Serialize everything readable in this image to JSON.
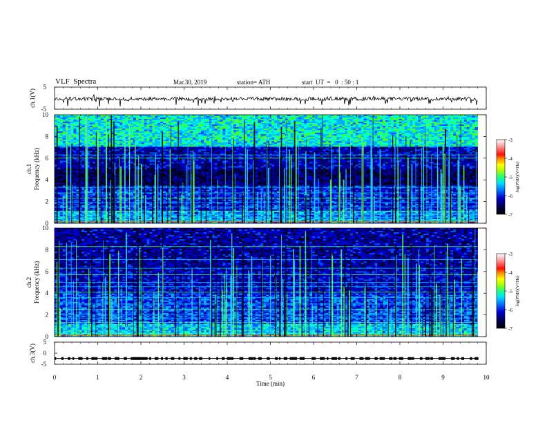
{
  "header": {
    "title": "VLF  Spectra",
    "date": "Mar.30, 2019",
    "station": "station= ATH",
    "start": "start  UT  =   0  : 50 : 1"
  },
  "colors": {
    "spectrum_scale": [
      "#000000",
      "#000033",
      "#000080",
      "#0000cc",
      "#0050ff",
      "#00b0ff",
      "#00ffd0",
      "#40ff40",
      "#c0ff00",
      "#ffff00",
      "#ffa000",
      "#ff2000",
      "#ff8080",
      "#ffffff"
    ]
  },
  "chart_data": [
    {
      "type": "line",
      "panel": "ch1-waveform",
      "ylabel": "ch.1(V)",
      "yticks": [
        "5",
        "-5"
      ],
      "ylim": [
        -5,
        5
      ],
      "xlim": [
        0,
        10
      ],
      "note_values": "noisy waveform around -0.3 V with spikes to about -1.5 V"
    },
    {
      "type": "heatmap",
      "panel": "ch1-spectrogram",
      "ylabel_channel": "ch.1",
      "ylabel": "Frequency  (kHz)",
      "yticks": [
        "0",
        "2",
        "4",
        "6",
        "8",
        "10"
      ],
      "ylim": [
        0,
        10
      ],
      "xlim": [
        0,
        9.8
      ],
      "colorbar": {
        "label": "log(PSD)(V²/Hz)",
        "ticks": [
          "-3",
          "-4",
          "-5",
          "-6",
          "-7"
        ],
        "range": [
          -7,
          -3
        ]
      }
    },
    {
      "type": "heatmap",
      "panel": "ch2-spectrogram",
      "ylabel_channel": "ch.2",
      "ylabel": "Frequency  (kHz)",
      "yticks": [
        "0",
        "2",
        "4",
        "6",
        "8",
        "10"
      ],
      "ylim": [
        0,
        10
      ],
      "xlim": [
        0,
        9.8
      ],
      "colorbar": {
        "label": "log(PSD)(V²/Hz)",
        "ticks": [
          "-3",
          "-4",
          "-5",
          "-6",
          "-7"
        ],
        "range": [
          -7,
          -3
        ]
      }
    },
    {
      "type": "line",
      "panel": "ch3-pulses",
      "ylabel": "ch.3(V)",
      "yticks": [
        "5",
        "0",
        "-5"
      ],
      "ylim": [
        -5,
        5
      ],
      "xlim": [
        0,
        10
      ],
      "level": -2.4
    }
  ],
  "xaxis": {
    "label": "Time  (min)",
    "ticks": [
      "0",
      "1",
      "2",
      "3",
      "4",
      "5",
      "6",
      "7",
      "8",
      "9",
      "10"
    ]
  }
}
